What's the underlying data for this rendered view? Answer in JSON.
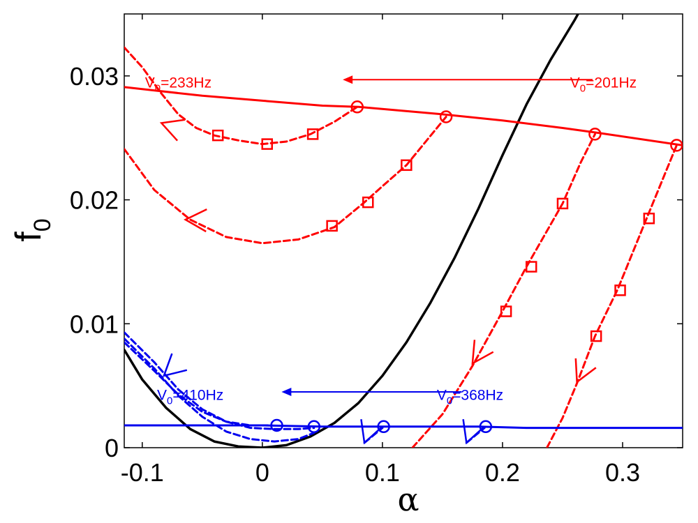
{
  "chart_data": {
    "type": "line",
    "xlabel": "α",
    "ylabel": "f",
    "ylabel_sub": "0",
    "xlim": [
      -0.115,
      0.35
    ],
    "ylim": [
      0,
      0.035
    ],
    "xticks": [
      -0.1,
      0,
      0.1,
      0.2,
      0.3
    ],
    "xtick_labels": [
      "-0.1",
      "0",
      "0.1",
      "0.2",
      "0.3"
    ],
    "yticks": [
      0,
      0.01,
      0.02,
      0.03
    ],
    "ytick_labels": [
      "0",
      "0.01",
      "0.02",
      "0.03"
    ],
    "grid": false,
    "colors": {
      "red": "#ff0000",
      "blue": "#0000ee",
      "black": "#000000"
    },
    "annotations": [
      {
        "text": "V0=233Hz",
        "main": "V",
        "sub": "0",
        "rest": "=233Hz",
        "color": "#ff0000",
        "x": -0.07,
        "y": 0.0295
      },
      {
        "text": "V0=201Hz",
        "main": "V",
        "sub": "0",
        "rest": "=201Hz",
        "color": "#ff0000",
        "x": 0.284,
        "y": 0.0295
      },
      {
        "text": "V0=410Hz",
        "main": "V",
        "sub": "0",
        "rest": "=410Hz",
        "color": "#0000ee",
        "x": -0.06,
        "y": 0.0043
      },
      {
        "text": "V0=368Hz",
        "main": "V",
        "sub": "0",
        "rest": "=368Hz",
        "color": "#0000ee",
        "x": 0.173,
        "y": 0.0043
      }
    ],
    "arrows": [
      {
        "color": "#ff0000",
        "from": [
          0.275,
          0.0297
        ],
        "to": [
          0.067,
          0.0297
        ]
      },
      {
        "color": "#0000ee",
        "from": [
          0.166,
          0.0045
        ],
        "to": [
          0.016,
          0.0045
        ]
      }
    ],
    "series": [
      {
        "color": "#000000",
        "style": "solid",
        "x": [
          -0.115,
          -0.1,
          -0.08,
          -0.06,
          -0.04,
          -0.02,
          0,
          0.02,
          0.04,
          0.06,
          0.08,
          0.1,
          0.12,
          0.14,
          0.16,
          0.18,
          0.2,
          0.22,
          0.24,
          0.26,
          0.28
        ],
        "y": [
          0.0079,
          0.0055,
          0.0032,
          0.0015,
          0.0005,
          0.0001,
          0.0,
          0.0002,
          0.0009,
          0.002,
          0.0036,
          0.0058,
          0.0085,
          0.0117,
          0.0153,
          0.0193,
          0.0236,
          0.0277,
          0.0313,
          0.0345,
          0.038
        ]
      },
      {
        "color": "#ff0000",
        "style": "solid",
        "x": [
          -0.115,
          -0.05,
          0,
          0.05,
          0.08,
          0.15,
          0.2,
          0.25,
          0.28,
          0.35
        ],
        "y": [
          0.0291,
          0.0284,
          0.028,
          0.0276,
          0.0275,
          0.0269,
          0.0264,
          0.0258,
          0.0254,
          0.0244
        ]
      },
      {
        "color": "#ff0000",
        "style": "dashed",
        "x": [
          -0.115,
          -0.1,
          -0.085,
          -0.07,
          -0.055,
          -0.04,
          -0.02,
          0,
          0.02,
          0.04,
          0.06,
          0.079
        ],
        "y": [
          0.0323,
          0.0307,
          0.0287,
          0.0269,
          0.0258,
          0.0252,
          0.0248,
          0.0245,
          0.0247,
          0.0253,
          0.0263,
          0.0275
        ]
      },
      {
        "color": "#ff0000",
        "style": "dashed",
        "x": [
          -0.115,
          -0.09,
          -0.06,
          -0.03,
          0,
          0.03,
          0.06,
          0.085,
          0.1,
          0.12,
          0.153
        ],
        "y": [
          0.0241,
          0.0208,
          0.0184,
          0.017,
          0.0165,
          0.0168,
          0.0178,
          0.0198,
          0.0211,
          0.0228,
          0.0267
        ]
      },
      {
        "color": "#ff0000",
        "style": "dashed",
        "x": [
          0.125,
          0.15,
          0.175,
          0.2,
          0.22,
          0.24,
          0.25,
          0.265,
          0.277
        ],
        "y": [
          0.0,
          0.0027,
          0.0066,
          0.011,
          0.0146,
          0.018,
          0.0197,
          0.023,
          0.0253
        ]
      },
      {
        "color": "#ff0000",
        "style": "dashed",
        "x": [
          0.237,
          0.25,
          0.262,
          0.277,
          0.296,
          0.32,
          0.345
        ],
        "y": [
          0.0,
          0.0024,
          0.0052,
          0.009,
          0.0128,
          0.0185,
          0.0244
        ]
      },
      {
        "color": "#0000ee",
        "style": "solid",
        "x": [
          -0.115,
          0,
          0.05,
          0.1,
          0.18,
          0.22,
          0.35
        ],
        "y": [
          0.0018,
          0.0018,
          0.0017,
          0.0017,
          0.0017,
          0.0016,
          0.0016
        ]
      },
      {
        "color": "#0000ee",
        "style": "dashed",
        "x": [
          -0.115,
          -0.09,
          -0.07,
          -0.05,
          -0.03,
          -0.01,
          0.01,
          0.03,
          0.043
        ],
        "y": [
          0.0093,
          0.0069,
          0.0047,
          0.0031,
          0.0021,
          0.0016,
          0.0015,
          0.0015,
          0.0016
        ]
      },
      {
        "color": "#0000ee",
        "style": "dashed",
        "x": [
          -0.115,
          -0.09,
          -0.07,
          -0.05,
          -0.03,
          -0.01,
          0.01,
          0.03,
          0.043
        ],
        "y": [
          0.0088,
          0.0064,
          0.0042,
          0.0025,
          0.0013,
          0.0007,
          0.0005,
          0.0007,
          0.0012
        ]
      },
      {
        "color": "#0000ee",
        "style": "dashed",
        "x": [
          -0.115,
          -0.09,
          -0.07,
          -0.05,
          -0.03,
          -0.01,
          0.008
        ],
        "y": [
          0.0085,
          0.0062,
          0.0043,
          0.0029,
          0.0021,
          0.0018,
          0.0018
        ]
      },
      {
        "color": "#0000ee",
        "style": "dashed",
        "x": [
          0.085,
          0.1
        ],
        "y": [
          0.0004,
          0.0016
        ]
      },
      {
        "color": "#0000ee",
        "style": "dashed",
        "x": [
          0.17,
          0.185
        ],
        "y": [
          0.0004,
          0.0016
        ]
      }
    ],
    "circle_markers": [
      {
        "color": "#ff0000",
        "points": [
          [
            0.079,
            0.0275
          ],
          [
            0.153,
            0.0267
          ],
          [
            0.277,
            0.0253
          ],
          [
            0.345,
            0.0244
          ]
        ]
      },
      {
        "color": "#0000ee",
        "points": [
          [
            0.012,
            0.0018
          ],
          [
            0.043,
            0.0017
          ],
          [
            0.101,
            0.0017
          ],
          [
            0.186,
            0.0017
          ]
        ]
      }
    ],
    "square_markers": [
      {
        "color": "#ff0000",
        "points": [
          [
            -0.037,
            0.0252
          ],
          [
            0.004,
            0.0245
          ],
          [
            0.042,
            0.0253
          ],
          [
            0.058,
            0.0179
          ],
          [
            0.088,
            0.0198
          ],
          [
            0.12,
            0.0228
          ],
          [
            0.203,
            0.011
          ],
          [
            0.224,
            0.0146
          ],
          [
            0.25,
            0.0197
          ],
          [
            0.278,
            0.009
          ],
          [
            0.298,
            0.0127
          ],
          [
            0.322,
            0.0185
          ]
        ]
      }
    ],
    "direction_arrows": [
      {
        "color": "#ff0000",
        "tip": [
          -0.084,
          0.0262
        ],
        "angle": 160
      },
      {
        "color": "#ff0000",
        "tip": [
          -0.064,
          0.0184
        ],
        "angle": 178
      },
      {
        "color": "#ff0000",
        "tip": [
          0.175,
          0.0068
        ],
        "angle": 237
      },
      {
        "color": "#ff0000",
        "tip": [
          0.262,
          0.0053
        ],
        "angle": 245
      },
      {
        "color": "#0000ee",
        "tip": [
          -0.082,
          0.0058
        ],
        "angle": 222
      },
      {
        "color": "#0000ee",
        "tip": [
          0.085,
          0.0004
        ],
        "angle": 250
      },
      {
        "color": "#0000ee",
        "tip": [
          0.17,
          0.0004
        ],
        "angle": 250
      }
    ]
  }
}
